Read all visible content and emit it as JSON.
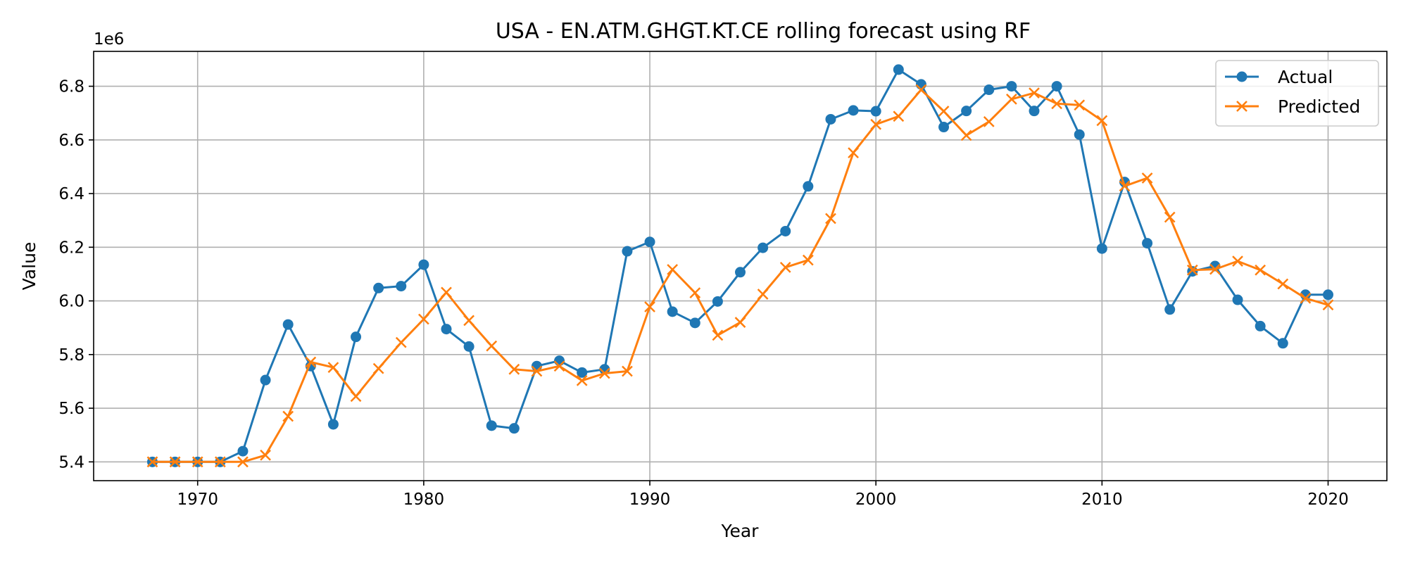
{
  "chart_data": {
    "type": "line",
    "title": "USA - EN.ATM.GHGT.KT.CE rolling forecast using RF",
    "xlabel": "Year",
    "ylabel": "Value",
    "y_offset_text": "1e6",
    "xlim": [
      1965.4,
      2022.6
    ],
    "ylim": [
      5330000,
      6930000
    ],
    "xticks": [
      1970,
      1980,
      1990,
      2000,
      2010,
      2020
    ],
    "yticks": [
      5400000,
      5600000,
      5800000,
      6000000,
      6200000,
      6400000,
      6600000,
      6800000
    ],
    "ytick_labels": [
      "5.4",
      "5.6",
      "5.8",
      "6.0",
      "6.2",
      "6.4",
      "6.6",
      "6.8"
    ],
    "grid": true,
    "legend_position": "top-right",
    "x": [
      1968,
      1969,
      1970,
      1971,
      1972,
      1973,
      1974,
      1975,
      1976,
      1977,
      1978,
      1979,
      1980,
      1981,
      1982,
      1983,
      1984,
      1985,
      1986,
      1987,
      1988,
      1989,
      1990,
      1991,
      1992,
      1993,
      1994,
      1995,
      1996,
      1997,
      1998,
      1999,
      2000,
      2001,
      2002,
      2003,
      2004,
      2005,
      2006,
      2007,
      2008,
      2009,
      2010,
      2011,
      2012,
      2013,
      2014,
      2015,
      2016,
      2017,
      2018,
      2019,
      2020
    ],
    "series": [
      {
        "name": "Actual",
        "color": "#1f77b4",
        "marker": "circle",
        "values": [
          5400000,
          5400000,
          5400000,
          5400000,
          5440000,
          5705000,
          5912000,
          5757000,
          5540000,
          5866000,
          6048000,
          6055000,
          6135000,
          5895000,
          5830000,
          5535000,
          5525000,
          5757000,
          5777000,
          5733000,
          5745000,
          6185000,
          6220000,
          5960000,
          5918000,
          5998000,
          6107000,
          6198000,
          6260000,
          6427000,
          6677000,
          6710000,
          6707000,
          6862000,
          6807000,
          6648000,
          6708000,
          6787000,
          6800000,
          6708000,
          6800000,
          6620000,
          6195000,
          6443000,
          6215000,
          5968000,
          6110000,
          6130000,
          6004000,
          5906000,
          5842000,
          6023000,
          6023000
        ]
      },
      {
        "name": "Predicted",
        "color": "#ff7f0e",
        "marker": "x",
        "values": [
          5400000,
          5400000,
          5400000,
          5400000,
          5400000,
          5425000,
          5570000,
          5772000,
          5752000,
          5644000,
          5748000,
          5845000,
          5932000,
          6032000,
          5927000,
          5832000,
          5745000,
          5738000,
          5757000,
          5703000,
          5730000,
          5738000,
          5978000,
          6117000,
          6030000,
          5872000,
          5920000,
          6025000,
          6125000,
          6152000,
          6307000,
          6552000,
          6658000,
          6688000,
          6787000,
          6707000,
          6617000,
          6668000,
          6752000,
          6775000,
          6735000,
          6730000,
          6672000,
          6428000,
          6458000,
          6312000,
          6115000,
          6118000,
          6148000,
          6115000,
          6063000,
          6010000,
          5985000
        ]
      }
    ]
  }
}
